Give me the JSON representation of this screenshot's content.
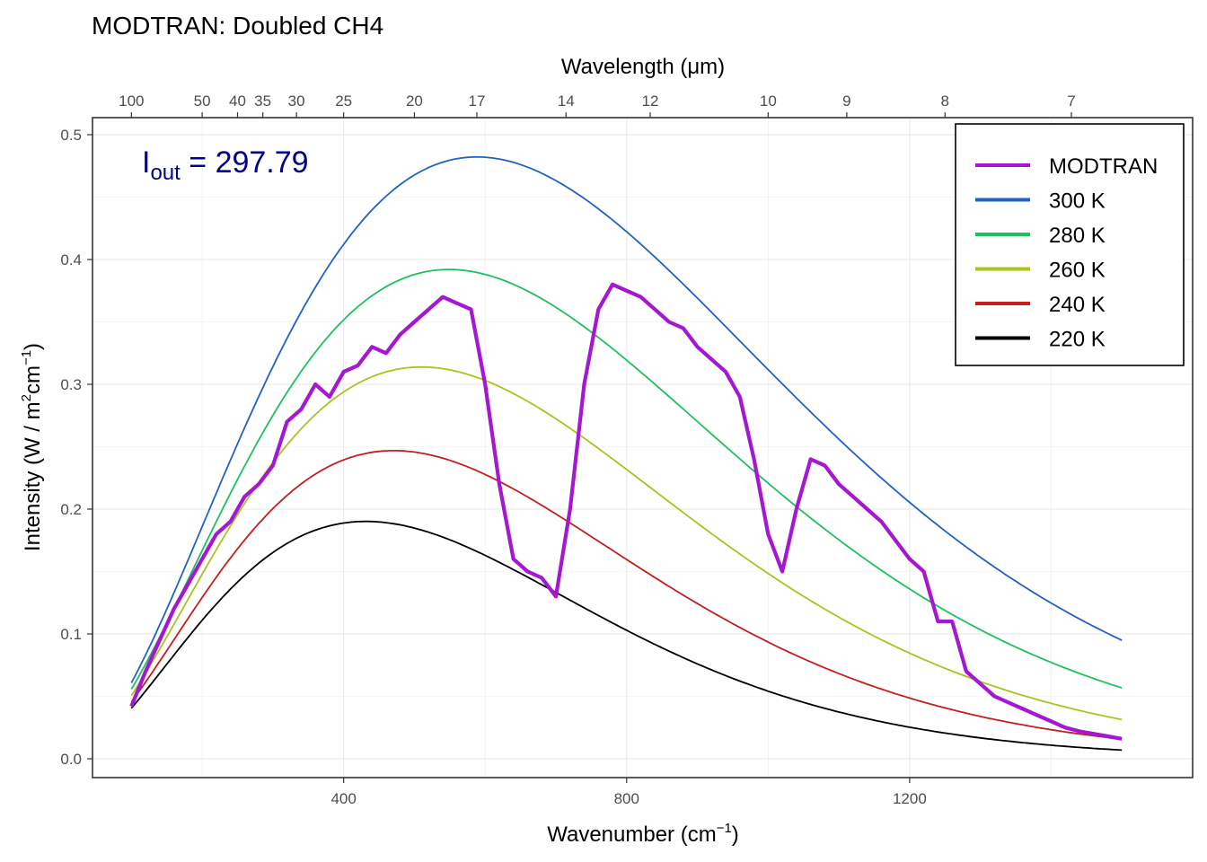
{
  "chart_data": {
    "type": "line",
    "title": "MODTRAN: Doubled CH4",
    "xlabel": "Wavenumber (cm",
    "xlabel_sup": "−1",
    "xlabel_suffix": ")",
    "ylabel": "Intensity (W / m",
    "ylabel_sup1": "2",
    "ylabel_mid": "cm",
    "ylabel_sup2": "−1",
    "ylabel_suffix": ")",
    "x2label": "Wavelength (μm)",
    "xlim": [
      100,
      1500
    ],
    "ylim": [
      0,
      0.5
    ],
    "x_ticks": [
      400,
      800,
      1200
    ],
    "y_ticks": [
      0.0,
      0.1,
      0.2,
      0.3,
      0.4,
      0.5
    ],
    "y_tick_labels": [
      "0.0",
      "0.1",
      "0.2",
      "0.3",
      "0.4",
      "0.5"
    ],
    "x2_ticks": [
      100,
      50,
      40,
      35,
      30,
      25,
      20,
      17,
      14,
      12,
      10,
      9,
      8,
      7
    ],
    "grid": true,
    "legend_position": "top-right",
    "annotation": {
      "symbol": "I",
      "subscript": "out",
      "equals": " = ",
      "value": "297.79"
    },
    "series": [
      {
        "name": "MODTRAN",
        "color": "#a517d0",
        "width": 4.2,
        "kind": "measured",
        "x": [
          100,
          120,
          140,
          160,
          180,
          200,
          220,
          240,
          260,
          280,
          300,
          320,
          340,
          360,
          380,
          400,
          420,
          440,
          460,
          480,
          500,
          520,
          540,
          560,
          580,
          600,
          620,
          640,
          660,
          680,
          700,
          720,
          740,
          760,
          780,
          800,
          820,
          840,
          860,
          880,
          900,
          920,
          940,
          960,
          980,
          1000,
          1020,
          1040,
          1060,
          1080,
          1100,
          1120,
          1140,
          1160,
          1180,
          1200,
          1220,
          1240,
          1260,
          1280,
          1300,
          1320,
          1340,
          1360,
          1380,
          1400,
          1420,
          1440,
          1460,
          1480,
          1500
        ],
        "y": [
          0.042,
          0.07,
          0.095,
          0.12,
          0.14,
          0.16,
          0.18,
          0.19,
          0.21,
          0.22,
          0.235,
          0.27,
          0.28,
          0.3,
          0.29,
          0.31,
          0.315,
          0.33,
          0.325,
          0.34,
          0.35,
          0.36,
          0.37,
          0.365,
          0.36,
          0.3,
          0.22,
          0.16,
          0.15,
          0.145,
          0.13,
          0.2,
          0.3,
          0.36,
          0.38,
          0.375,
          0.37,
          0.36,
          0.35,
          0.345,
          0.33,
          0.32,
          0.31,
          0.29,
          0.24,
          0.18,
          0.15,
          0.2,
          0.24,
          0.235,
          0.22,
          0.21,
          0.2,
          0.19,
          0.175,
          0.16,
          0.15,
          0.11,
          0.11,
          0.07,
          0.06,
          0.05,
          0.045,
          0.04,
          0.035,
          0.03,
          0.025,
          0.022,
          0.02,
          0.018,
          0.016
        ]
      },
      {
        "name": "300 K",
        "color": "#1f62c4",
        "temperature": 300
      },
      {
        "name": "280 K",
        "color": "#1ec05f",
        "temperature": 280
      },
      {
        "name": "260 K",
        "color": "#a9c41e",
        "temperature": 260
      },
      {
        "name": "240 K",
        "color": "#c41e1e",
        "temperature": 240
      },
      {
        "name": "220 K",
        "color": "#000000",
        "temperature": 220
      }
    ]
  }
}
